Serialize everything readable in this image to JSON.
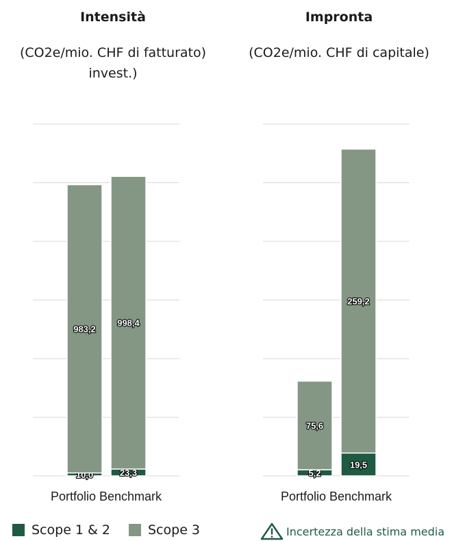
{
  "chart_data": [
    {
      "type": "bar",
      "stacked": true,
      "title": "Intensità",
      "subtitle": [
        "(CO2e/mio. CHF di fatturato)",
        "invest.)"
      ],
      "xlabel": "Portfolio Benchmark",
      "categories": [
        "Portfolio",
        "Benchmark"
      ],
      "ylim": [
        0,
        1200
      ],
      "grid": true,
      "series": [
        {
          "name": "Scope 1 & 2",
          "values": [
            10.0,
            23.3
          ],
          "labels": [
            "10,0",
            "23,3"
          ]
        },
        {
          "name": "Scope 3",
          "values": [
            983.2,
            998.4
          ],
          "labels": [
            "983,2",
            "998,4"
          ]
        }
      ]
    },
    {
      "type": "bar",
      "stacked": true,
      "title": "Impronta",
      "subtitle": [
        "(CO2e/mio. CHF di capitale)"
      ],
      "xlabel": "Portfolio Benchmark",
      "categories": [
        "Portfolio",
        "Benchmark"
      ],
      "ylim": [
        0,
        300
      ],
      "grid": true,
      "series": [
        {
          "name": "Scope 1 & 2",
          "values": [
            5.2,
            19.5
          ],
          "labels": [
            "5,2",
            "19,5"
          ]
        },
        {
          "name": "Scope 3",
          "values": [
            75.6,
            259.2
          ],
          "labels": [
            "75,6",
            "259,2"
          ]
        }
      ]
    }
  ],
  "legend": {
    "scope12": "Scope 1 & 2",
    "scope3": "Scope 3",
    "uncertainty": "Incertezza della stima media"
  },
  "colors": {
    "scope12": "#1f5a43",
    "scope3": "#849684",
    "grid": "#d9d9d9",
    "warn": "#1f5a43"
  },
  "icons": {
    "uncertainty": "warning-triangle-icon"
  }
}
